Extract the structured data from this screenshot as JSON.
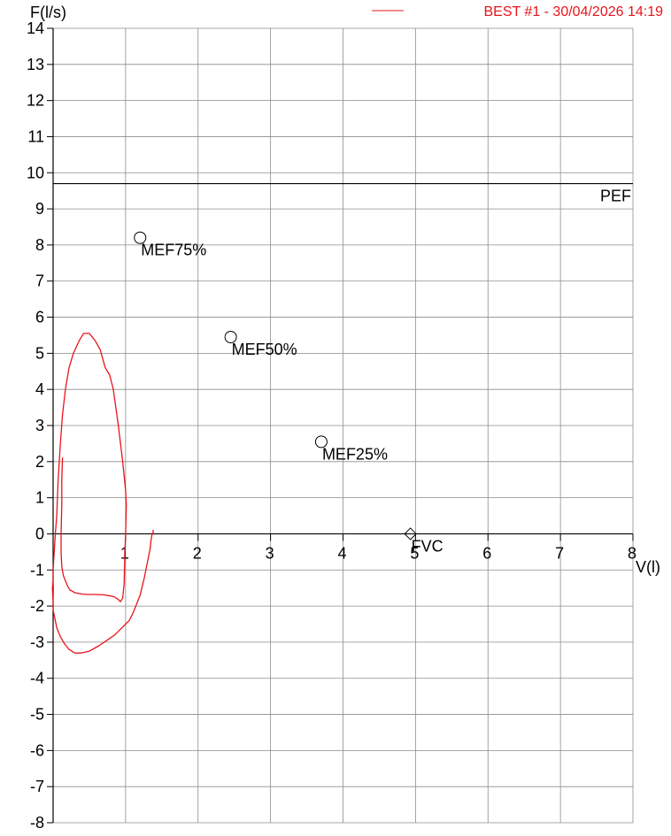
{
  "chart_data": {
    "type": "line",
    "xlabel": "V(l)",
    "ylabel": "F(l/s)",
    "xlim": [
      0,
      8
    ],
    "ylim": [
      -8,
      14
    ],
    "x_ticks": [
      1,
      2,
      3,
      4,
      5,
      6,
      7,
      8
    ],
    "y_ticks": [
      -8,
      -7,
      -6,
      -5,
      -4,
      -3,
      -2,
      -1,
      0,
      1,
      2,
      3,
      4,
      5,
      6,
      7,
      8,
      9,
      10,
      11,
      12,
      13,
      14
    ],
    "grid": true,
    "legend_position": "top-right",
    "series": [
      {
        "name": "BEST #1 - 30/04/2026  14:19",
        "color": "#e8141b",
        "x": [
          0.13,
          0.12,
          0.12,
          0.11,
          0.11,
          0.12,
          0.14,
          0.17,
          0.2,
          0.23,
          0.3,
          0.4,
          0.5,
          0.6,
          0.7,
          0.8,
          0.85,
          0.9,
          0.93,
          0.96,
          0.98,
          0.99,
          1.0,
          1.01,
          1.0,
          0.96,
          0.9,
          0.83,
          0.78,
          0.72,
          0.65,
          0.58,
          0.5,
          0.42,
          0.36,
          0.28,
          0.22,
          0.17,
          0.13,
          0.1,
          0.07,
          0.05,
          0.03,
          0.0,
          0.0,
          -0.01,
          0.0,
          0.0,
          0.02,
          0.05,
          0.1,
          0.16,
          0.22,
          0.3,
          0.38,
          0.5,
          0.63,
          0.74,
          0.85,
          0.95,
          1.05,
          1.1,
          1.15,
          1.2,
          1.23,
          1.26,
          1.28,
          1.3,
          1.32,
          1.34,
          1.35,
          1.36,
          1.37,
          1.38,
          1.38
        ],
        "y": [
          2.1,
          1.5,
          0.8,
          0.0,
          -0.5,
          -0.9,
          -1.15,
          -1.3,
          -1.45,
          -1.55,
          -1.63,
          -1.67,
          -1.68,
          -1.68,
          -1.69,
          -1.72,
          -1.75,
          -1.82,
          -1.88,
          -1.78,
          -1.4,
          -0.5,
          0.0,
          0.8,
          1.2,
          2.0,
          3.0,
          4.0,
          4.4,
          4.6,
          5.1,
          5.35,
          5.55,
          5.55,
          5.35,
          5.0,
          4.6,
          4.0,
          3.3,
          2.5,
          1.5,
          0.5,
          0.0,
          -1.0,
          -1.3,
          -1.5,
          -1.9,
          -2.1,
          -2.3,
          -2.6,
          -2.85,
          -3.05,
          -3.2,
          -3.3,
          -3.3,
          -3.25,
          -3.1,
          -2.95,
          -2.8,
          -2.6,
          -2.4,
          -2.2,
          -1.95,
          -1.7,
          -1.45,
          -1.2,
          -1.0,
          -0.8,
          -0.6,
          -0.4,
          -0.2,
          -0.05,
          0.0,
          0.05,
          0.1
        ]
      }
    ],
    "reference_lines": [
      {
        "label": "PEF",
        "axis": "y",
        "value": 9.7
      }
    ],
    "annotations": [
      {
        "label": "MEF75%",
        "x": 1.2,
        "y": 8.2,
        "marker": "circle"
      },
      {
        "label": "MEF50%",
        "x": 2.45,
        "y": 5.45,
        "marker": "circle"
      },
      {
        "label": "MEF25%",
        "x": 3.7,
        "y": 2.55,
        "marker": "circle"
      },
      {
        "label": "FVC",
        "x": 4.93,
        "y": 0.0,
        "marker": "diamond"
      }
    ]
  }
}
